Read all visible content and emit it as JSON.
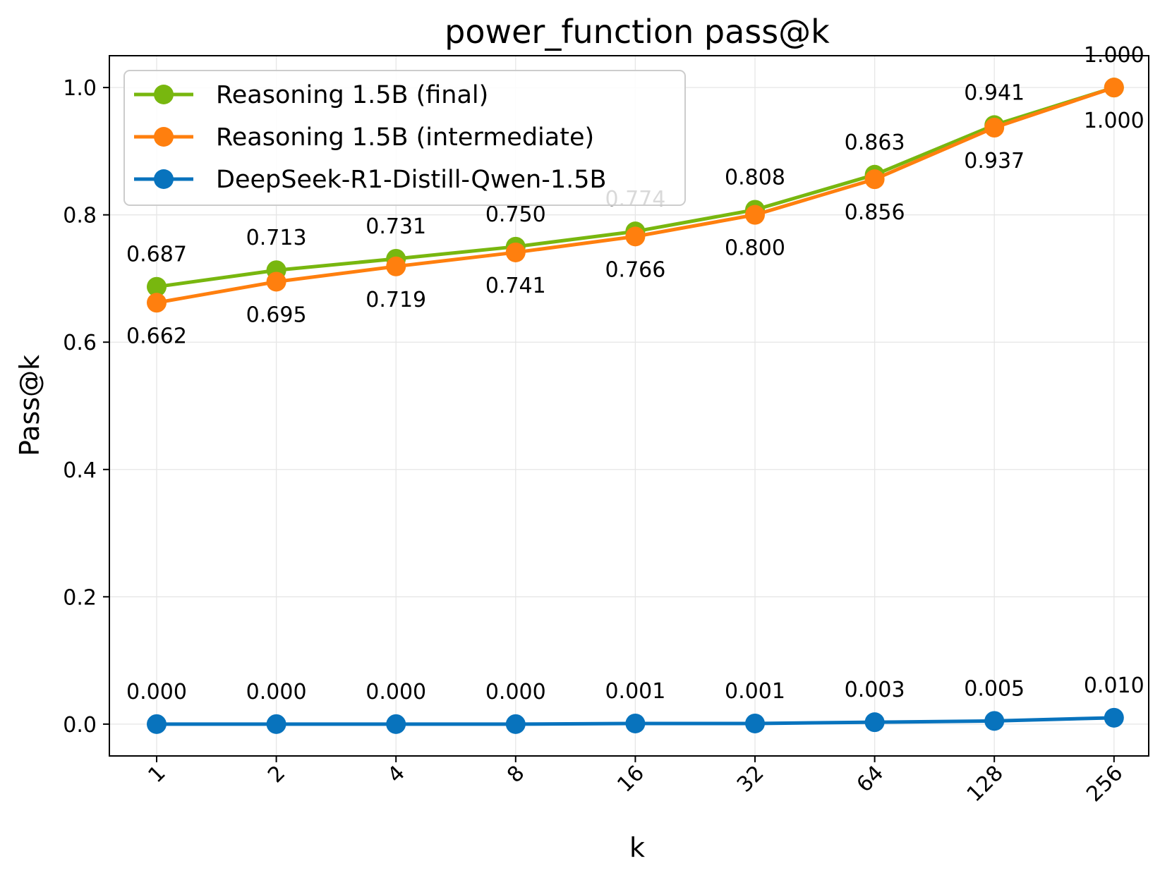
{
  "chart_data": {
    "type": "line",
    "title": "power_function pass@k",
    "xlabel": "k",
    "ylabel": "Pass@k",
    "categories": [
      "1",
      "2",
      "4",
      "8",
      "16",
      "32",
      "64",
      "128",
      "256"
    ],
    "ylim": [
      -0.05,
      1.05
    ],
    "yticks": [
      "0.0",
      "0.2",
      "0.4",
      "0.6",
      "0.8",
      "1.0"
    ],
    "grid": true,
    "legend_position": "top-left",
    "series": [
      {
        "name": "Reasoning 1.5B (final)",
        "color": "#78b70f",
        "values": [
          0.687,
          0.713,
          0.731,
          0.75,
          0.774,
          0.808,
          0.863,
          0.941,
          1.0
        ],
        "labels": [
          "0.687",
          "0.713",
          "0.731",
          "0.750",
          "0.774",
          "0.808",
          "0.863",
          "0.941",
          "1.000"
        ],
        "label_side": "above"
      },
      {
        "name": "Reasoning 1.5B (intermediate)",
        "color": "#ff7f0e",
        "values": [
          0.662,
          0.695,
          0.719,
          0.741,
          0.766,
          0.8,
          0.856,
          0.937,
          1.0
        ],
        "labels": [
          "0.662",
          "0.695",
          "0.719",
          "0.741",
          "0.766",
          "0.800",
          "0.856",
          "0.937",
          "1.000"
        ],
        "label_side": "below"
      },
      {
        "name": "DeepSeek-R1-Distill-Qwen-1.5B",
        "color": "#0873bd",
        "values": [
          0.0,
          0.0,
          0.0,
          0.0,
          0.001,
          0.001,
          0.003,
          0.005,
          0.01
        ],
        "labels": [
          "0.000",
          "0.000",
          "0.000",
          "0.000",
          "0.001",
          "0.001",
          "0.003",
          "0.005",
          "0.010"
        ],
        "label_side": "above"
      }
    ]
  }
}
